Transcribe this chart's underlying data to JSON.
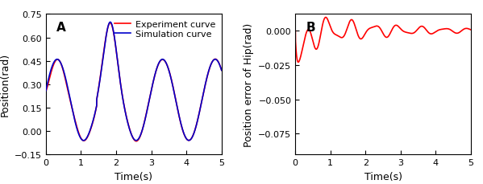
{
  "panel_A": {
    "label": "A",
    "xlabel": "Time(s)",
    "ylabel": "Position(rad)",
    "xlim": [
      0,
      5
    ],
    "ylim": [
      -0.15,
      0.75
    ],
    "yticks": [
      -0.15,
      0.0,
      0.15,
      0.3,
      0.45,
      0.6,
      0.75
    ],
    "xticks": [
      0,
      1,
      2,
      3,
      4,
      5
    ],
    "legend": [
      "Experiment curve",
      "Simulation curve"
    ],
    "exp_color": "#FF0000",
    "sim_color": "#0000CC",
    "line_width": 1.2
  },
  "panel_B": {
    "label": "B",
    "xlabel": "Time(s)",
    "ylabel": "Position error of Hip(rad)",
    "xlim": [
      0,
      5
    ],
    "ylim": [
      -0.09,
      0.012
    ],
    "yticks": [
      -0.075,
      -0.05,
      -0.025,
      0.0
    ],
    "xticks": [
      0,
      1,
      2,
      3,
      4,
      5
    ],
    "error_color": "#FF0000",
    "line_width": 1.2
  },
  "background_color": "#FFFFFF",
  "label_fontsize": 9,
  "tick_fontsize": 8,
  "legend_fontsize": 8
}
